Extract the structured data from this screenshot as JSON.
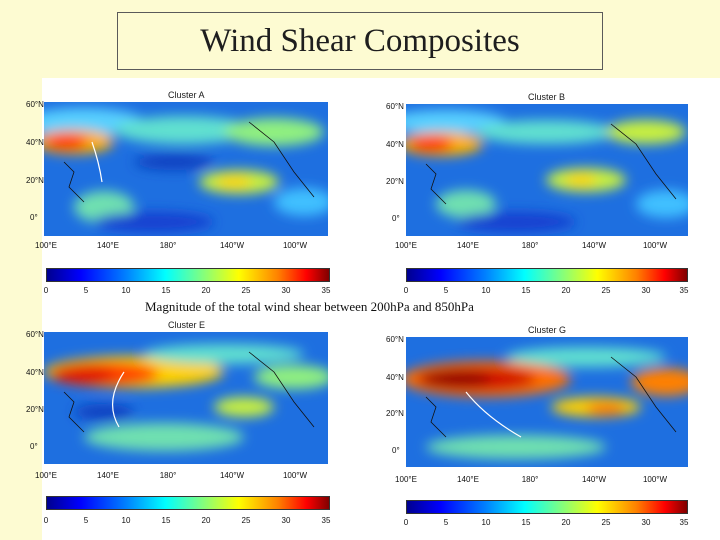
{
  "slide": {
    "title": "Wind Shear Composites",
    "caption": "Magnitude of the total wind shear between 200hPa and 850hPa"
  },
  "panels": [
    {
      "id": "a",
      "title": "Cluster A"
    },
    {
      "id": "b",
      "title": "Cluster B"
    },
    {
      "id": "e",
      "title": "Cluster E"
    },
    {
      "id": "g",
      "title": "Cluster G"
    }
  ],
  "axes": {
    "lat_labels": [
      "60°N",
      "40°N",
      "20°N",
      "0°"
    ],
    "lon_labels": [
      "100°E",
      "140°E",
      "180°",
      "140°W",
      "100°W"
    ]
  },
  "colorbar": {
    "unit": "",
    "ticks": [
      "0",
      "5",
      "10",
      "15",
      "20",
      "25",
      "30",
      "35"
    ]
  },
  "colors": {
    "background_band": "#fdfbd2",
    "cold": "#0000ff",
    "mid": "#00ffff",
    "warm": "#ff0000"
  }
}
